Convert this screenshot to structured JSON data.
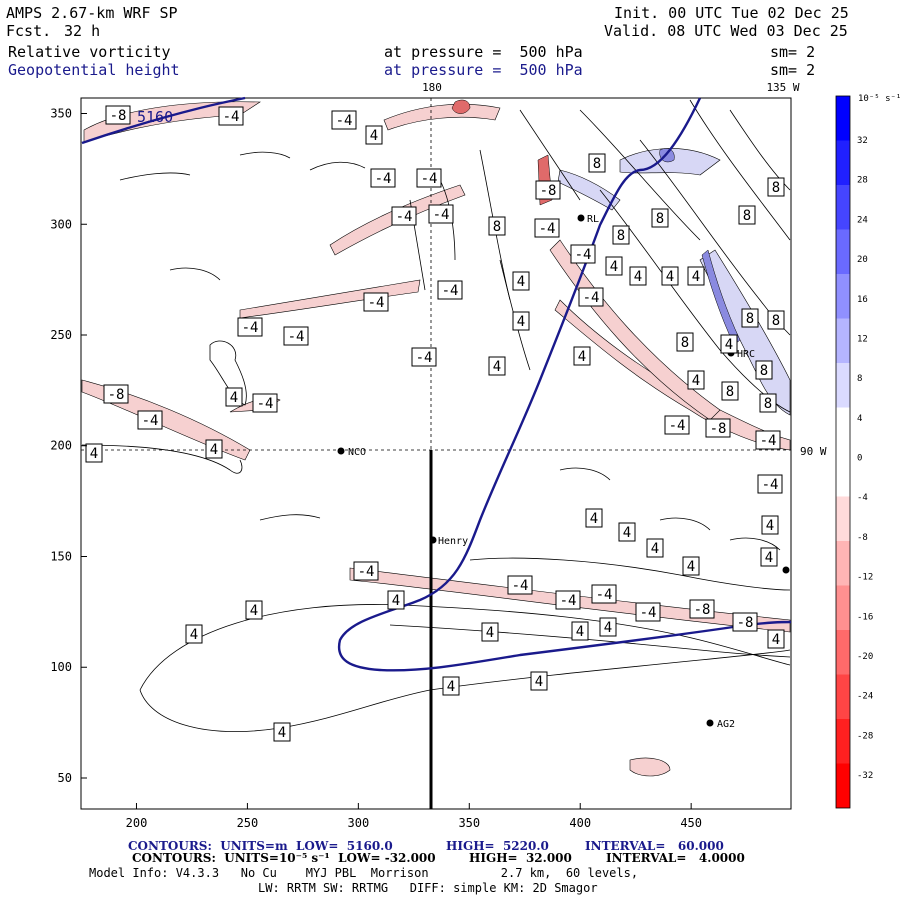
{
  "header": {
    "model": "AMPS 2.67-km WRF SP",
    "fcst_label": "Fcst.",
    "fcst_value": "32 h",
    "init": "Init. 00 UTC Tue 02 Dec 25",
    "valid": "Valid. 08 UTC Wed 03 Dec 25",
    "field1_name": "Relative vorticity",
    "field1_level": "at pressure =  500 hPa",
    "field1_sm": "sm= 2",
    "field2_name": "Geopotential height",
    "field2_level": "at pressure =  500 hPa",
    "field2_sm": "sm= 2"
  },
  "map": {
    "meridian_180": "180",
    "meridian_135w": "135 W",
    "meridian_90w": "90 W",
    "x_ticks": [
      "200",
      "250",
      "300",
      "350",
      "400",
      "450"
    ],
    "y_ticks": [
      "50",
      "100",
      "150",
      "200",
      "250",
      "300",
      "350"
    ],
    "stations": [
      "NCO",
      "Henry",
      "HRC",
      "AG2",
      "RL"
    ],
    "height_label": "5160"
  },
  "colorbar": {
    "unit": "10⁻⁵ s⁻¹",
    "labels": [
      "32",
      "28",
      "24",
      "20",
      "16",
      "12",
      "8",
      "4",
      "0",
      "-4",
      "-8",
      "-12",
      "-16",
      "-20",
      "-24",
      "-28",
      "-32"
    ],
    "positive_color": "#0000ff",
    "negative_color": "#ff0000"
  },
  "footer": {
    "line1_a": "CONTOURS:  UNITS=m  LOW=  5160.0",
    "line1_b": "HIGH=  5220.0",
    "line1_c": "INTERVAL=   60.000",
    "line2_a": "CONTOURS:  UNITS=10⁻⁵ s⁻¹  LOW= -32.000",
    "line2_b": "HIGH=  32.000",
    "line2_c": "INTERVAL=   4.0000",
    "line3": "Model Info: V4.3.3   No Cu    MYJ PBL  Morrison          2.7 km,  60 levels,",
    "line4": "LW: RRTM SW: RRTMG   DIFF: simple KM: 2D Smagor"
  },
  "contour_labels": {
    "pos4": "4",
    "neg4": "-4",
    "pos8": "8",
    "neg8": "-8"
  }
}
